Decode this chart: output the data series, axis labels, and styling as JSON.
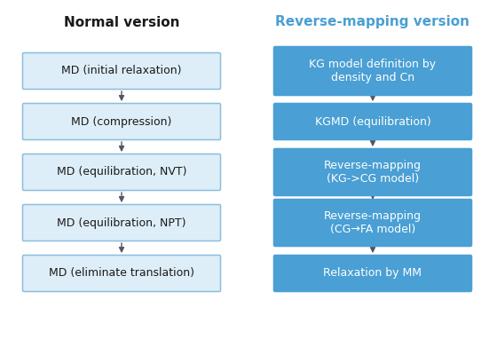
{
  "title_left": "Normal version",
  "title_right": "Reverse-mapping version",
  "title_left_color": "#1a1a1a",
  "title_right_color": "#4a9fd4",
  "left_boxes": [
    "MD (initial relaxation)",
    "MD (compression)",
    "MD (equilibration, NVT)",
    "MD (equilibration, NPT)",
    "MD (eliminate translation)"
  ],
  "right_boxes": [
    "KG model definition by\ndensity and Cn",
    "KGMD (equilibration)",
    "Reverse-mapping\n(KG->CG model)",
    "Reverse-mapping\n(CG→FA model)",
    "Relaxation by MM"
  ],
  "left_box_facecolor": "#deeef8",
  "left_box_edgecolor": "#8bbedd",
  "right_box_facecolor": "#4a9fd4",
  "right_box_edgecolor": "#4a9fd4",
  "left_text_color": "#1a1a1a",
  "right_text_color": "#ffffff",
  "arrow_color": "#555566",
  "background_color": "#ffffff",
  "fig_width": 5.6,
  "fig_height": 4.0,
  "dpi": 100
}
